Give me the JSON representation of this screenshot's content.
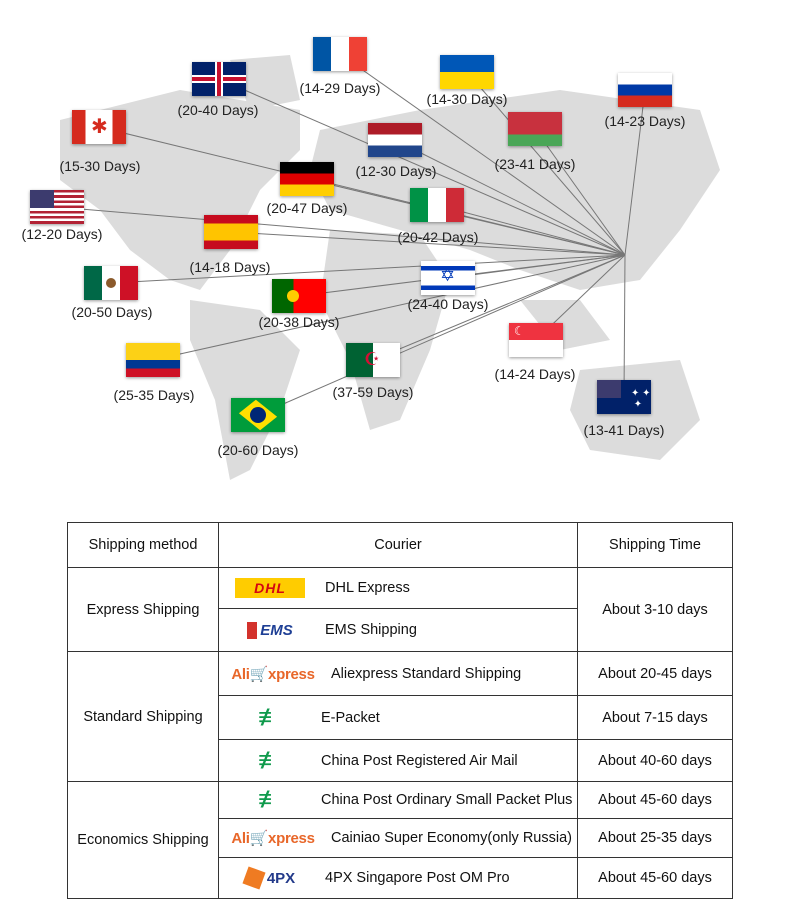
{
  "destinations": [
    {
      "country": "United Kingdom",
      "flag": "uk",
      "days": "(20-40 Days)"
    },
    {
      "country": "France",
      "flag": "france",
      "days": "(14-29 Days)"
    },
    {
      "country": "Ukraine",
      "flag": "ukraine",
      "days": "(14-30 Days)"
    },
    {
      "country": "Russia",
      "flag": "russia",
      "days": "(14-23 Days)"
    },
    {
      "country": "Canada",
      "flag": "canada",
      "days": "(15-30 Days)"
    },
    {
      "country": "Netherlands",
      "flag": "netherlands",
      "days": "(12-30 Days)"
    },
    {
      "country": "Belarus",
      "flag": "belarus",
      "days": "(23-41 Days)"
    },
    {
      "country": "Germany",
      "flag": "germany",
      "days": "(20-47 Days)"
    },
    {
      "country": "United States",
      "flag": "usa",
      "days": "(12-20 Days)"
    },
    {
      "country": "Italy",
      "flag": "italy",
      "days": "(20-42 Days)"
    },
    {
      "country": "Spain",
      "flag": "spain",
      "days": "(14-18 Days)"
    },
    {
      "country": "Mexico",
      "flag": "mexico",
      "days": "(20-50 Days)"
    },
    {
      "country": "Portugal",
      "flag": "portugal",
      "days": "(20-38 Days)"
    },
    {
      "country": "Israel",
      "flag": "israel",
      "days": "(24-40 Days)"
    },
    {
      "country": "Singapore",
      "flag": "singapore",
      "days": "(14-24 Days)"
    },
    {
      "country": "Colombia",
      "flag": "colombia",
      "days": "(25-35 Days)"
    },
    {
      "country": "Algeria",
      "flag": "algeria",
      "days": "(37-59 Days)"
    },
    {
      "country": "Australia",
      "flag": "australia",
      "days": "(13-41 Days)"
    },
    {
      "country": "Brazil",
      "flag": "brazil",
      "days": "(20-60 Days)"
    }
  ],
  "table": {
    "headers": [
      "Shipping method",
      "Courier",
      "Shipping Time"
    ],
    "methods": [
      "Express Shipping",
      "Standard Shipping",
      "Economics Shipping"
    ],
    "couriers": [
      {
        "logo": "dhl-logo",
        "logo_text": "DHL",
        "name": "DHL Express",
        "time": "About 3-10 days"
      },
      {
        "logo": "ems-logo",
        "logo_text": "EMS",
        "name": "EMS Shipping"
      },
      {
        "logo": "aliexpress-logo",
        "logo_text": "AliExpress",
        "name": "Aliexpress Standard Shipping",
        "time": "About 20-45 days"
      },
      {
        "logo": "china-post-logo",
        "name": "E-Packet",
        "time": "About 7-15 days"
      },
      {
        "logo": "china-post-logo",
        "name": "China Post Registered Air Mail",
        "time": "About 40-60 days"
      },
      {
        "logo": "china-post-logo",
        "name": "China Post Ordinary Small Packet Plus",
        "time": "About 45-60 days"
      },
      {
        "logo": "aliexpress-logo",
        "logo_text": "AliExpress",
        "name": "Cainiao Super Economy(only Russia)",
        "time": "About 25-35 days"
      },
      {
        "logo": "4px-logo",
        "logo_text": "4PX",
        "name": "4PX Singapore Post OM Pro",
        "time": "About 45-60 days"
      }
    ]
  }
}
